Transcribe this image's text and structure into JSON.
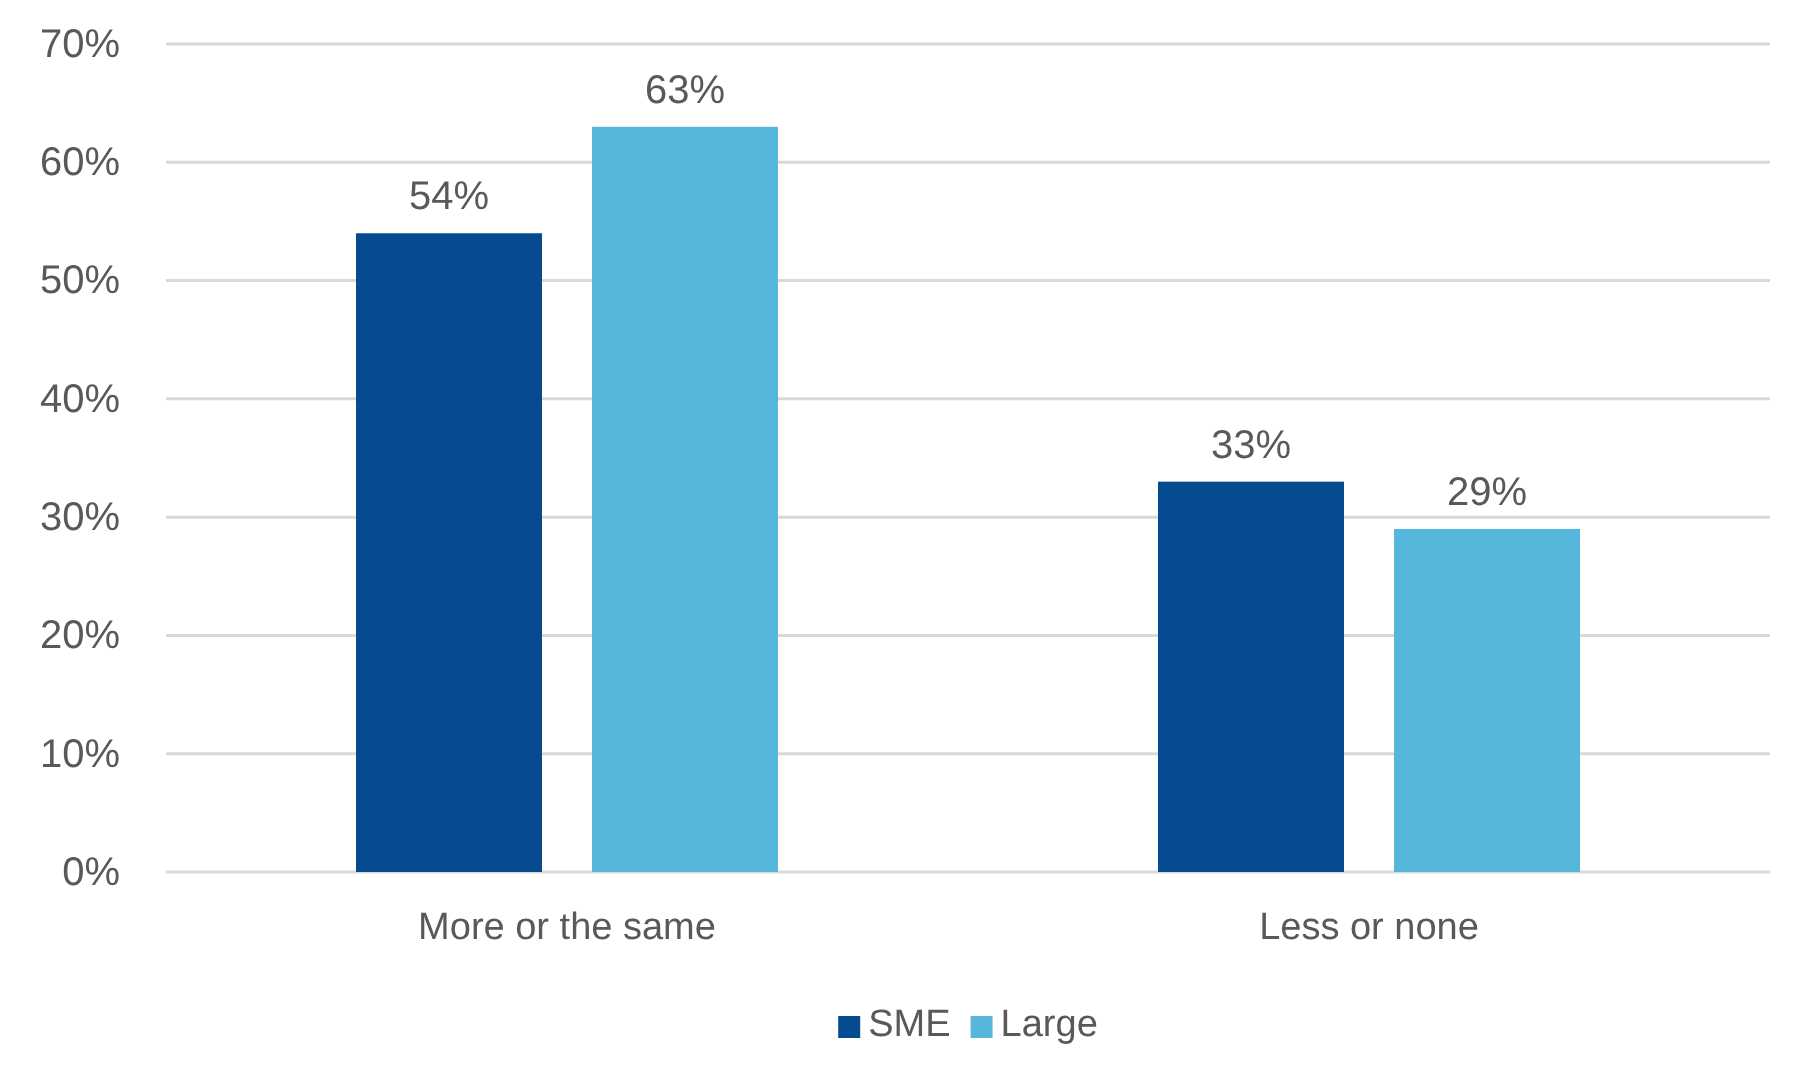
{
  "chart_data": {
    "type": "bar",
    "categories": [
      "More or the same",
      "Less or none"
    ],
    "series": [
      {
        "name": "SME",
        "color": "#064a8f",
        "values": [
          54,
          33
        ],
        "value_labels": [
          "54%",
          "33%"
        ]
      },
      {
        "name": "Large",
        "color": "#56b6dc",
        "values": [
          63,
          29
        ],
        "value_labels": [
          "63%",
          "29%"
        ]
      }
    ],
    "ylim": [
      0,
      70
    ],
    "yticks": [
      {
        "value": 0,
        "label": "0%"
      },
      {
        "value": 10,
        "label": "10%"
      },
      {
        "value": 20,
        "label": "20%"
      },
      {
        "value": 30,
        "label": "30%"
      },
      {
        "value": 40,
        "label": "40%"
      },
      {
        "value": 50,
        "label": "50%"
      },
      {
        "value": 60,
        "label": "60%"
      },
      {
        "value": 70,
        "label": "70%"
      }
    ],
    "grid": "y",
    "legend": "bottom"
  }
}
